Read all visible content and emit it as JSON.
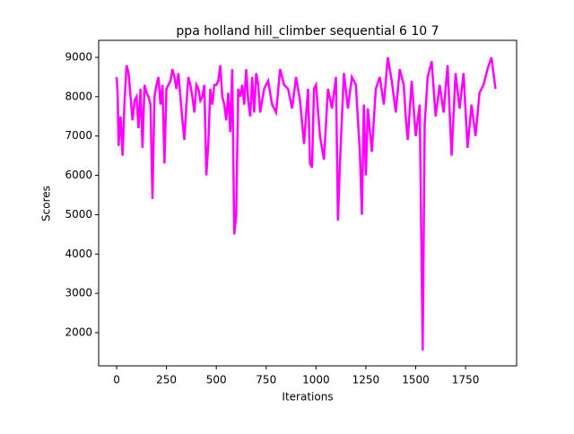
{
  "chart_data": {
    "type": "line",
    "title": "ppa holland hill_climber sequential 6 10 7",
    "x_label": "Iterations",
    "y_label": "Scores",
    "color": "#ff00ff",
    "xlim": [
      -90,
      2006
    ],
    "ylim": [
      1156,
      9433
    ],
    "xticks": [
      0,
      250,
      500,
      750,
      1000,
      1250,
      1500,
      1750
    ],
    "yticks": [
      2000,
      3000,
      4000,
      5000,
      6000,
      7000,
      8000,
      9000
    ],
    "x": [
      0,
      5,
      10,
      20,
      30,
      40,
      50,
      60,
      70,
      80,
      90,
      100,
      110,
      120,
      130,
      140,
      150,
      160,
      170,
      180,
      190,
      200,
      210,
      220,
      230,
      240,
      250,
      260,
      270,
      280,
      290,
      300,
      310,
      320,
      330,
      340,
      350,
      360,
      370,
      380,
      390,
      400,
      410,
      420,
      430,
      440,
      450,
      460,
      470,
      480,
      490,
      500,
      510,
      520,
      530,
      540,
      550,
      560,
      570,
      580,
      590,
      600,
      610,
      620,
      630,
      640,
      650,
      660,
      670,
      680,
      690,
      700,
      710,
      720,
      740,
      760,
      780,
      800,
      820,
      840,
      860,
      880,
      900,
      920,
      940,
      960,
      970,
      980,
      990,
      1000,
      1020,
      1040,
      1060,
      1080,
      1100,
      1110,
      1120,
      1140,
      1160,
      1180,
      1200,
      1220,
      1230,
      1240,
      1250,
      1260,
      1280,
      1300,
      1320,
      1340,
      1360,
      1380,
      1400,
      1420,
      1440,
      1450,
      1460,
      1480,
      1500,
      1520,
      1535,
      1545,
      1560,
      1580,
      1600,
      1620,
      1640,
      1660,
      1680,
      1700,
      1720,
      1740,
      1760,
      1780,
      1800,
      1820,
      1840,
      1860,
      1880,
      1900
    ],
    "values": [
      8500,
      8100,
      6750,
      7500,
      6500,
      7900,
      8800,
      8600,
      8000,
      7400,
      7900,
      8000,
      7200,
      8200,
      6700,
      8300,
      8100,
      8000,
      7800,
      5400,
      8000,
      8300,
      8500,
      7800,
      8300,
      6300,
      8200,
      8300,
      8400,
      8700,
      8500,
      8200,
      8600,
      8000,
      7400,
      6900,
      7800,
      8500,
      8300,
      8000,
      7600,
      8300,
      8200,
      7900,
      8000,
      8300,
      6000,
      6800,
      8200,
      7800,
      8300,
      8300,
      8400,
      8800,
      8000,
      7800,
      7400,
      8100,
      7100,
      8700,
      4500,
      5000,
      8200,
      8000,
      8300,
      7800,
      8700,
      7900,
      7500,
      8500,
      7600,
      8600,
      8300,
      7600,
      8200,
      8400,
      7800,
      7600,
      8700,
      8300,
      8200,
      7700,
      8500,
      7900,
      6800,
      8200,
      6300,
      6200,
      8200,
      8300,
      7000,
      6400,
      8200,
      7700,
      8500,
      4850,
      6300,
      8600,
      7700,
      8500,
      8300,
      6600,
      5000,
      7800,
      6000,
      7700,
      6600,
      8200,
      8500,
      7800,
      9000,
      8400,
      7600,
      8700,
      8300,
      7500,
      6900,
      8400,
      7000,
      7800,
      1550,
      7300,
      8500,
      8900,
      7500,
      8300,
      7600,
      8800,
      6500,
      8600,
      7700,
      8600,
      6700,
      7800,
      7000,
      8100,
      8300,
      8700,
      9000,
      8200
    ]
  }
}
